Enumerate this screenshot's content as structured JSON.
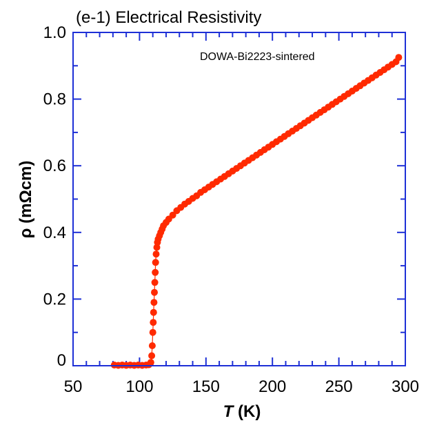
{
  "chart_data": {
    "type": "scatter",
    "title": "(e-1) Electrical Resistivity",
    "annotation": "DOWA-Bi2223-sintered",
    "xlabel_symbol": "T",
    "xlabel_unit": " (K)",
    "ylabel": "ρ (mΩcm)",
    "xlim": [
      50,
      300
    ],
    "ylim": [
      0,
      1.0
    ],
    "x_ticks": [
      50,
      100,
      150,
      200,
      250,
      300
    ],
    "y_ticks": [
      0,
      0.2,
      0.4,
      0.6,
      0.8,
      1.0
    ],
    "y_tick_labels": [
      "0",
      "0.2",
      "0.4",
      "0.6",
      "0.8",
      "1.0"
    ],
    "grid": false,
    "series": [
      {
        "color": "#ff2a00",
        "x": [
          81,
          84,
          87,
          90,
          93,
          96,
          99,
          102,
          105,
          107,
          108.5,
          109.2,
          109.6,
          110,
          110.3,
          110.6,
          110.9,
          111.2,
          111.5,
          111.8,
          112.1,
          112.5,
          113,
          113.5,
          114,
          115,
          116,
          117,
          118,
          120,
          122,
          125,
          128,
          131,
          134,
          137,
          140,
          143,
          146,
          149,
          152,
          155,
          158,
          161,
          164,
          167,
          170,
          173,
          176,
          179,
          182,
          185,
          188,
          191,
          194,
          197,
          200,
          203,
          206,
          209,
          212,
          215,
          218,
          221,
          224,
          227,
          230,
          233,
          236,
          239,
          242,
          245,
          248,
          251,
          254,
          257,
          260,
          263,
          266,
          269,
          272,
          275,
          278,
          281,
          284,
          287,
          290,
          293,
          295
        ],
        "y": [
          0.002,
          0.001,
          0.002,
          0.001,
          0.002,
          0.001,
          0.002,
          0.001,
          0.002,
          0.003,
          0.01,
          0.03,
          0.06,
          0.1,
          0.13,
          0.16,
          0.19,
          0.22,
          0.25,
          0.28,
          0.31,
          0.335,
          0.355,
          0.37,
          0.38,
          0.39,
          0.4,
          0.41,
          0.42,
          0.43,
          0.44,
          0.452,
          0.465,
          0.475,
          0.485,
          0.493,
          0.502,
          0.51,
          0.52,
          0.528,
          0.536,
          0.544,
          0.552,
          0.56,
          0.568,
          0.576,
          0.584,
          0.592,
          0.6,
          0.608,
          0.616,
          0.624,
          0.632,
          0.64,
          0.648,
          0.656,
          0.664,
          0.672,
          0.68,
          0.688,
          0.696,
          0.704,
          0.712,
          0.72,
          0.728,
          0.736,
          0.744,
          0.752,
          0.76,
          0.768,
          0.776,
          0.784,
          0.792,
          0.8,
          0.808,
          0.816,
          0.824,
          0.832,
          0.84,
          0.848,
          0.856,
          0.864,
          0.872,
          0.88,
          0.888,
          0.896,
          0.904,
          0.912,
          0.925
        ]
      }
    ]
  }
}
